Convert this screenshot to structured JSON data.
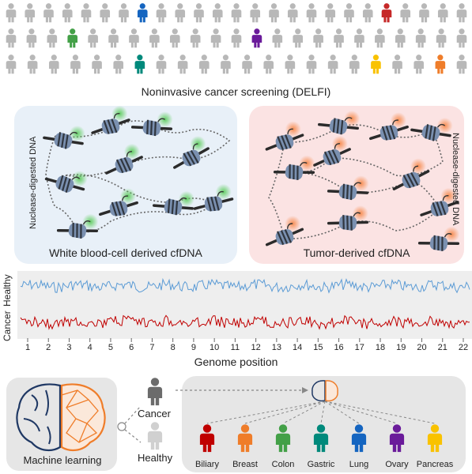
{
  "screening": {
    "caption": "Noninvasive cancer screening (DELFI)",
    "rows": [
      {
        "count": 25,
        "highlights": [
          {
            "index": 7,
            "color": "#1565c0"
          },
          {
            "index": 20,
            "color": "#c62828"
          }
        ]
      },
      {
        "count": 23,
        "highlights": [
          {
            "index": 3,
            "color": "#43a047"
          },
          {
            "index": 12,
            "color": "#6a1b9a"
          }
        ]
      },
      {
        "count": 22,
        "highlights": [
          {
            "index": 6,
            "color": "#00897b"
          },
          {
            "index": 17,
            "color": "#f9c200"
          },
          {
            "index": 20,
            "color": "#ef7d2a"
          }
        ]
      }
    ],
    "gray_color": "#b8b8b8"
  },
  "panels": {
    "left": {
      "caption": "White blood-cell derived cfDNA",
      "side_label": "Nuclease-digested DNA",
      "bg": "#e8f0f8",
      "glow": "#5ccc5c"
    },
    "right": {
      "caption": "Tumor-derived cfDNA",
      "side_label": "Nuclease-digested DNA",
      "bg": "#fbe3e3",
      "glow": "#f6894b"
    }
  },
  "genome": {
    "healthy_label": "Healthy",
    "cancer_label": "Cancer",
    "axis_title": "Genome position",
    "ticks": [
      "1",
      "2",
      "3",
      "4",
      "5",
      "6",
      "7",
      "8",
      "9",
      "10",
      "11",
      "12",
      "13",
      "14",
      "15",
      "16",
      "17",
      "18",
      "19",
      "20",
      "21",
      "22"
    ],
    "healthy_color": "#5b9bd5",
    "cancer_color": "#c00000"
  },
  "ml": {
    "brain_label": "Machine learning",
    "cancer_label": "Cancer",
    "healthy_label": "Healthy",
    "cancer_color": "#6b6b6b",
    "healthy_color": "#d0d0d0"
  },
  "tissues": [
    {
      "label": "Biliary",
      "color": "#c00000"
    },
    {
      "label": "Breast",
      "color": "#ef7d2a"
    },
    {
      "label": "Colon",
      "color": "#43a047"
    },
    {
      "label": "Gastric",
      "color": "#00897b"
    },
    {
      "label": "Lung",
      "color": "#1565c0"
    },
    {
      "label": "Ovary",
      "color": "#6a1b9a"
    },
    {
      "label": "Pancreas",
      "color": "#f9c200"
    }
  ]
}
